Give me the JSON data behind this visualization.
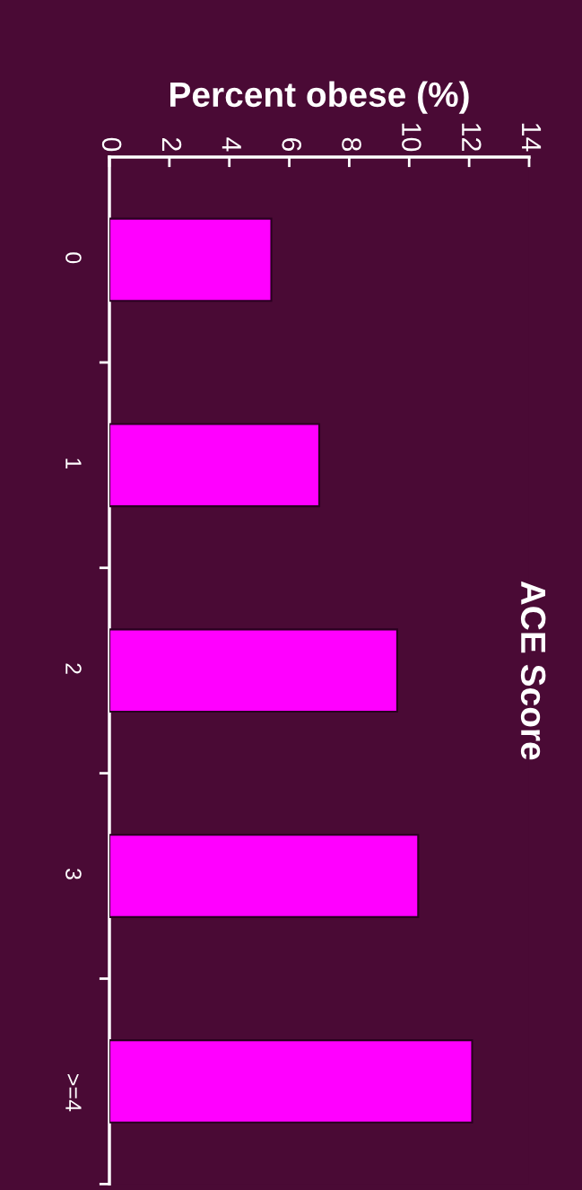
{
  "chart_data": {
    "type": "bar",
    "orientation": "horizontal",
    "xlabel": "Percent obese (%)",
    "ylabel": "ACE Score",
    "categories": [
      "0",
      "1",
      "2",
      "3",
      ">=4"
    ],
    "values": [
      5.4,
      7.0,
      9.6,
      10.3,
      12.1
    ],
    "color": "#ff00ff",
    "xlim": [
      0,
      14
    ],
    "xticks": [
      0,
      2,
      4,
      6,
      8,
      10,
      12,
      14
    ],
    "grid": false,
    "legend": false
  }
}
